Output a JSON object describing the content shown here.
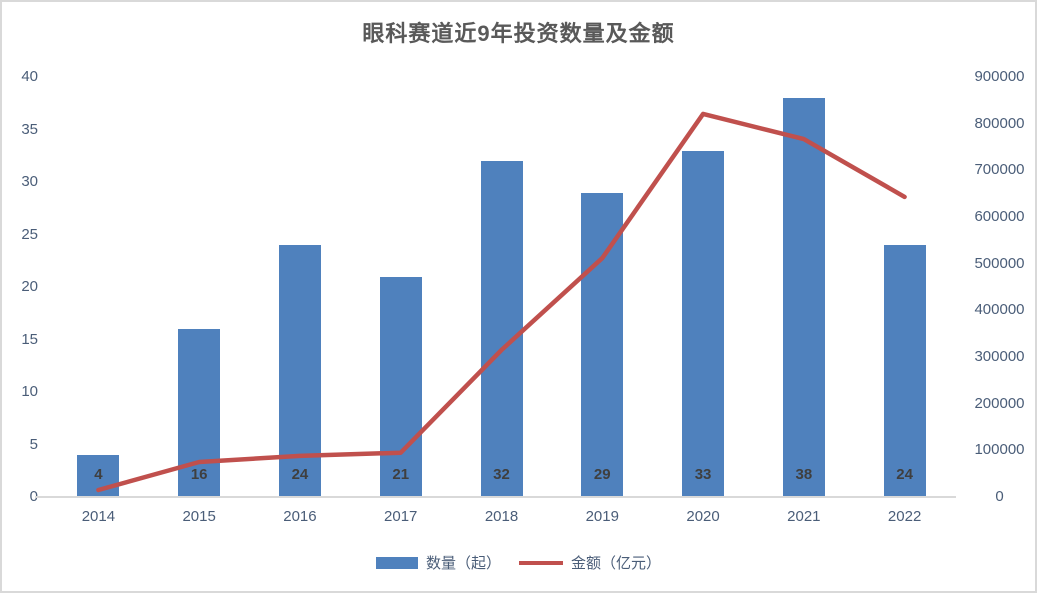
{
  "title": "眼科赛道近9年投资数量及金额",
  "legend": {
    "bar_label": "数量（起）",
    "line_label": "金额（亿元）"
  },
  "colors": {
    "bar": "#4f81bd",
    "line": "#c0504d",
    "title_text": "#595959",
    "axis_text": "#4a5d78",
    "bar_label_text": "#3f3f3f",
    "axis_line": "#d9d9d9",
    "frame": "#d9d9d9"
  },
  "chart_data": {
    "type": "combo",
    "title": "眼科赛道近9年投资数量及金额",
    "categories": [
      "2014",
      "2015",
      "2016",
      "2017",
      "2018",
      "2019",
      "2020",
      "2021",
      "2022"
    ],
    "series": [
      {
        "name": "数量（起）",
        "type": "bar",
        "axis": "left",
        "color": "#4f81bd",
        "values": [
          4,
          16,
          24,
          21,
          32,
          29,
          33,
          38,
          24
        ],
        "data_labels": [
          4,
          16,
          24,
          21,
          32,
          29,
          33,
          38,
          24
        ]
      },
      {
        "name": "金额（亿元）",
        "type": "line",
        "axis": "right",
        "color": "#c0504d",
        "values": [
          15000,
          75000,
          88000,
          95000,
          315000,
          512000,
          821000,
          767000,
          643000
        ],
        "data_labels": false
      }
    ],
    "left_axis": {
      "min": 0,
      "max": 40,
      "step": 5,
      "ticks": [
        0,
        5,
        10,
        15,
        20,
        25,
        30,
        35,
        40
      ]
    },
    "right_axis": {
      "min": 0,
      "max": 900000,
      "step": 100000,
      "ticks": [
        0,
        100000,
        200000,
        300000,
        400000,
        500000,
        600000,
        700000,
        800000,
        900000
      ]
    },
    "legend_position": "bottom",
    "grid": false
  }
}
